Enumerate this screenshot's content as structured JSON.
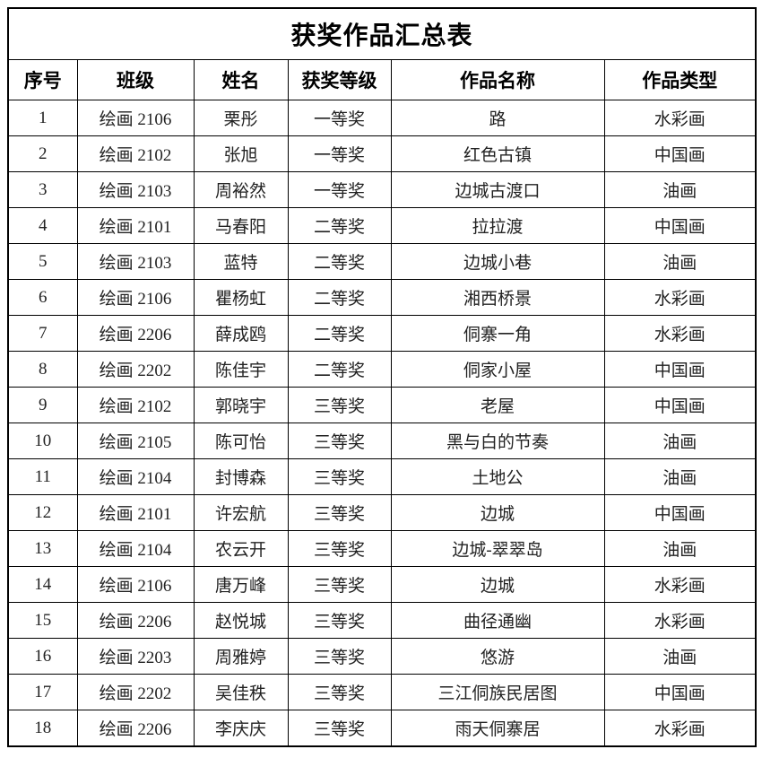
{
  "table": {
    "title": "获奖作品汇总表",
    "headers": [
      "序号",
      "班级",
      "姓名",
      "获奖等级",
      "作品名称",
      "作品类型"
    ],
    "rows": [
      [
        "1",
        "绘画 2106",
        "栗彤",
        "一等奖",
        "路",
        "水彩画"
      ],
      [
        "2",
        "绘画 2102",
        "张旭",
        "一等奖",
        "红色古镇",
        "中国画"
      ],
      [
        "3",
        "绘画 2103",
        "周裕然",
        "一等奖",
        "边城古渡口",
        "油画"
      ],
      [
        "4",
        "绘画 2101",
        "马春阳",
        "二等奖",
        "拉拉渡",
        "中国画"
      ],
      [
        "5",
        "绘画 2103",
        "蓝特",
        "二等奖",
        "边城小巷",
        "油画"
      ],
      [
        "6",
        "绘画 2106",
        "瞿杨虹",
        "二等奖",
        "湘西桥景",
        "水彩画"
      ],
      [
        "7",
        "绘画 2206",
        "薛成鸥",
        "二等奖",
        "侗寨一角",
        "水彩画"
      ],
      [
        "8",
        "绘画 2202",
        "陈佳宇",
        "二等奖",
        "侗家小屋",
        "中国画"
      ],
      [
        "9",
        "绘画 2102",
        "郭晓宇",
        "三等奖",
        "老屋",
        "中国画"
      ],
      [
        "10",
        "绘画 2105",
        "陈可怡",
        "三等奖",
        "黑与白的节奏",
        "油画"
      ],
      [
        "11",
        "绘画 2104",
        "封博森",
        "三等奖",
        "土地公",
        "油画"
      ],
      [
        "12",
        "绘画 2101",
        "许宏航",
        "三等奖",
        "边城",
        "中国画"
      ],
      [
        "13",
        "绘画 2104",
        "农云开",
        "三等奖",
        "边城-翠翠岛",
        "油画"
      ],
      [
        "14",
        "绘画 2106",
        "唐万峰",
        "三等奖",
        "边城",
        "水彩画"
      ],
      [
        "15",
        "绘画 2206",
        "赵悦城",
        "三等奖",
        "曲径通幽",
        "水彩画"
      ],
      [
        "16",
        "绘画 2203",
        "周雅婷",
        "三等奖",
        "悠游",
        "油画"
      ],
      [
        "17",
        "绘画 2202",
        "吴佳秩",
        "三等奖",
        "三江侗族民居图",
        "中国画"
      ],
      [
        "18",
        "绘画 2206",
        "李庆庆",
        "三等奖",
        "雨天侗寨居",
        "水彩画"
      ]
    ],
    "cell_names": [
      "cell-no",
      "cell-class",
      "cell-name",
      "cell-award",
      "cell-work",
      "cell-type"
    ]
  }
}
